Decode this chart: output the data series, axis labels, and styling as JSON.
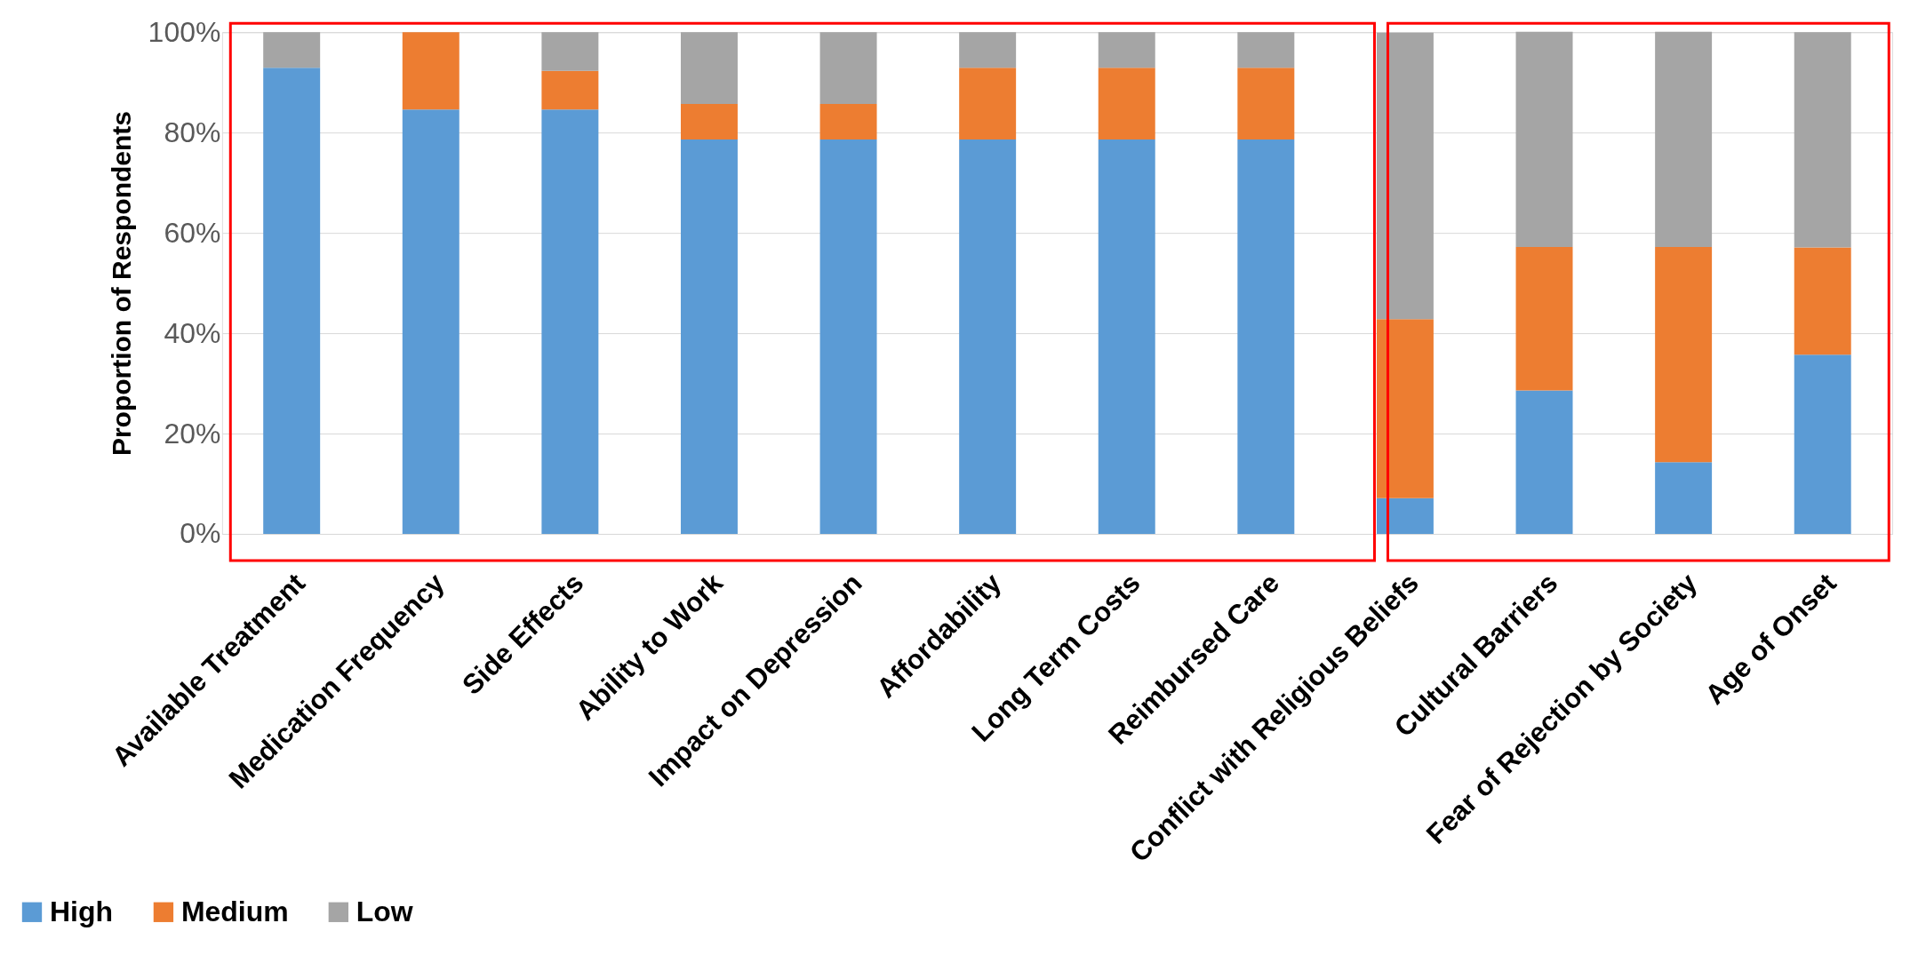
{
  "chart_data": {
    "type": "bar",
    "stacked": true,
    "ylabel": "Proportion of Respondents",
    "categories": [
      "Available Treatment",
      "Medication Frequency",
      "Side Effects",
      "Ability to Work",
      "Impact on Depression",
      "Affordability",
      "Long Term Costs",
      "Reimbursed Care",
      "Conflict with Religious Beliefs",
      "Cultural Barriers",
      "Fear of Rejection by Society",
      "Age of Onset"
    ],
    "series": [
      {
        "name": "High",
        "color": "#5b9bd5",
        "values": [
          92.9,
          84.6,
          84.6,
          78.6,
          78.6,
          78.6,
          78.6,
          78.6,
          7.1,
          28.6,
          14.3,
          35.7
        ]
      },
      {
        "name": "Medium",
        "color": "#ed7d31",
        "values": [
          0,
          15.4,
          7.7,
          7.1,
          7.1,
          14.3,
          14.3,
          14.3,
          35.7,
          28.6,
          42.9,
          21.4
        ]
      },
      {
        "name": "Low",
        "color": "#a5a5a5",
        "values": [
          7.1,
          0,
          7.7,
          14.3,
          14.3,
          7.1,
          7.1,
          7.1,
          57.1,
          42.9,
          42.9,
          42.9
        ]
      }
    ],
    "ylim": [
      0,
      100
    ],
    "yticks": [
      {
        "value": 0,
        "label": "0%"
      },
      {
        "value": 20,
        "label": "20%"
      },
      {
        "value": 40,
        "label": "40%"
      },
      {
        "value": 60,
        "label": "60%"
      },
      {
        "value": 80,
        "label": "80%"
      },
      {
        "value": 100,
        "label": "100%"
      }
    ],
    "grid": "y",
    "legend": "bottom left"
  }
}
